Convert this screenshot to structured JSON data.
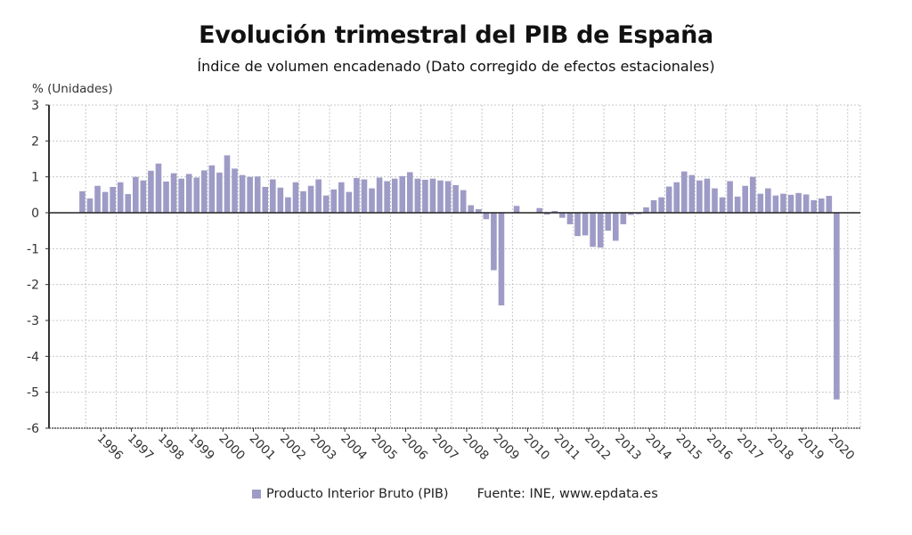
{
  "chart_data": {
    "type": "bar",
    "title": "Evolución trimestral del PIB de España",
    "subtitle": "Índice de volumen encadenado (Dato corregido de efectos estacionales)",
    "ylabel": "% (Unidades)",
    "xlabel": "",
    "ylim": [
      -6,
      3
    ],
    "yticks": [
      3,
      2,
      1,
      0,
      -1,
      -2,
      -3,
      -4,
      -5,
      -6
    ],
    "grid": true,
    "legend_position": "bottom",
    "color": "#9e9bc6",
    "x_tick_labels": [
      "1996",
      "1997",
      "1998",
      "1999",
      "2000",
      "2001",
      "2002",
      "2003",
      "2004",
      "2005",
      "2006",
      "2007",
      "2008",
      "2009",
      "2010",
      "2011",
      "2012",
      "2013",
      "2014",
      "2015",
      "2016",
      "2017",
      "2018",
      "2019",
      "2020"
    ],
    "first_quarter": "1995-Q2",
    "series": [
      {
        "name": "Producto Interior Bruto (PIB)",
        "values": [
          0.6,
          0.4,
          0.75,
          0.58,
          0.72,
          0.85,
          0.52,
          1.0,
          0.9,
          1.17,
          1.37,
          0.87,
          1.1,
          0.95,
          1.08,
          0.98,
          1.18,
          1.32,
          1.12,
          1.6,
          1.23,
          1.05,
          1.0,
          1.01,
          0.72,
          0.93,
          0.7,
          0.43,
          0.85,
          0.6,
          0.75,
          0.93,
          0.48,
          0.65,
          0.85,
          0.58,
          0.97,
          0.93,
          0.68,
          0.98,
          0.88,
          0.95,
          1.02,
          1.13,
          0.95,
          0.92,
          0.95,
          0.9,
          0.88,
          0.77,
          0.63,
          0.21,
          0.1,
          -0.18,
          -1.6,
          -2.58,
          0.0,
          0.19,
          0.0,
          0.0,
          0.13,
          -0.05,
          0.05,
          -0.14,
          -0.32,
          -0.65,
          -0.63,
          -0.95,
          -0.97,
          -0.5,
          -0.78,
          -0.32,
          -0.06,
          -0.04,
          0.15,
          0.35,
          0.43,
          0.73,
          0.85,
          1.15,
          1.05,
          0.9,
          0.95,
          0.68,
          0.43,
          0.88,
          0.45,
          0.75,
          1.0,
          0.53,
          0.68,
          0.48,
          0.53,
          0.5,
          0.55,
          0.51,
          0.35,
          0.4,
          0.47,
          -5.2
        ]
      }
    ],
    "source": "Fuente: INE, www.epdata.es"
  }
}
